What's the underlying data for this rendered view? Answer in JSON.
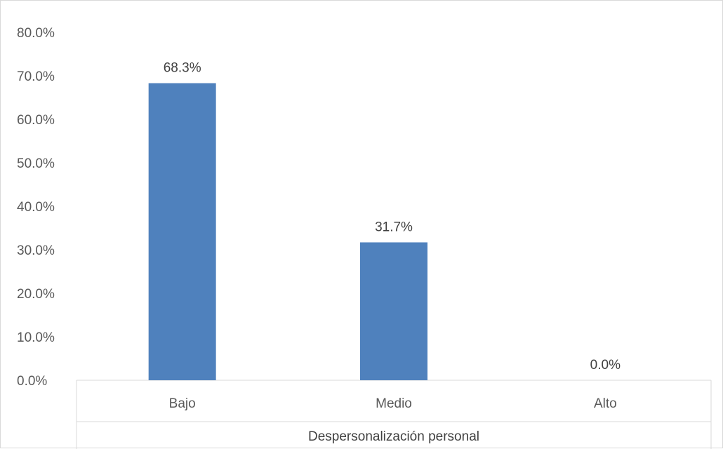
{
  "chart_data": {
    "type": "bar",
    "categories": [
      "Bajo",
      "Medio",
      "Alto"
    ],
    "values": [
      68.3,
      31.7,
      0.0
    ],
    "data_labels": [
      "68.3%",
      "31.7%",
      "0.0%"
    ],
    "yticks": [
      "0.0%",
      "10.0%",
      "20.0%",
      "30.0%",
      "40.0%",
      "50.0%",
      "60.0%",
      "70.0%",
      "80.0%"
    ],
    "ylim": [
      0,
      80
    ],
    "xlabel": "Despersonalización personal",
    "ylabel": "",
    "title": "",
    "grid": false,
    "bar_color": "#4f81bd"
  }
}
